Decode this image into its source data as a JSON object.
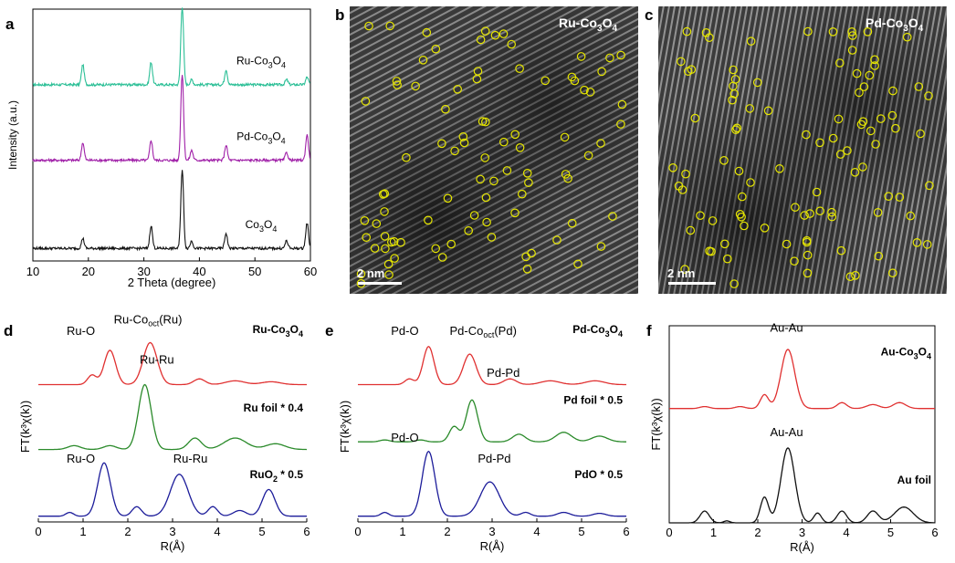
{
  "panels": {
    "a": "a",
    "b": "b",
    "c": "c",
    "d": "d",
    "e": "e",
    "f": "f"
  },
  "tem": {
    "b": {
      "label": "Ru-Co",
      "sub": "3",
      "after": "O",
      "sub2": "4",
      "scale": "2 nm"
    },
    "c": {
      "label": "Pd-Co",
      "sub": "3",
      "after": "O",
      "sub2": "4",
      "scale": "2 nm"
    }
  },
  "colors": {
    "teal": "#2bbf96",
    "purple": "#a020a8",
    "black": "#111111",
    "red": "#e03030",
    "green": "#2a8a2a",
    "blue": "#1c1c9a",
    "yellow": "#e6e600"
  },
  "chart_data": [
    {
      "id": "a",
      "type": "line",
      "title": "",
      "xlabel": "2 Theta (degree)",
      "ylabel": "Intensity (a.u.)",
      "xlim": [
        10,
        60
      ],
      "xticks": [
        "10",
        "20",
        "30",
        "40",
        "50",
        "60"
      ],
      "peaks": [
        19.0,
        31.3,
        36.9,
        38.6,
        44.8,
        55.7,
        59.4
      ],
      "series": [
        {
          "name": "Ru-Co3O4",
          "label": "Ru-Co",
          "sub": "3",
          "after": "O",
          "sub2": "4",
          "color": "#2bbf96",
          "offset": 0.7,
          "heights": [
            0.08,
            0.09,
            0.31,
            0.02,
            0.06,
            0.02,
            0.03
          ]
        },
        {
          "name": "Pd-Co3O4",
          "label": "Pd-Co",
          "sub": "3",
          "after": "O",
          "sub2": "4",
          "color": "#a020a8",
          "offset": 0.4,
          "heights": [
            0.07,
            0.08,
            0.34,
            0.04,
            0.06,
            0.03,
            0.1
          ]
        },
        {
          "name": "Co3O4",
          "label": "Co",
          "sub": "3",
          "after": "O",
          "sub2": "4",
          "color": "#111111",
          "offset": 0.05,
          "heights": [
            0.04,
            0.09,
            0.31,
            0.03,
            0.06,
            0.03,
            0.1
          ]
        }
      ]
    },
    {
      "id": "d",
      "type": "line",
      "xlabel": "R(Å)",
      "ylabel": "FT(k³χ(k))",
      "xlim": [
        0,
        6
      ],
      "xticks": [
        "0",
        "1",
        "2",
        "3",
        "4",
        "5",
        "6"
      ],
      "series": [
        {
          "name": "Ru-Co3O4",
          "bold": "Ru-Co",
          "boldsub": "3",
          "boldafter": "O",
          "boldsub2": "4",
          "color": "#e03030",
          "offset": 0.72,
          "peaks": [
            [
              1.2,
              0.05,
              0.14
            ],
            [
              1.6,
              0.18,
              0.18
            ],
            [
              2.5,
              0.22,
              0.22
            ],
            [
              3.6,
              0.03,
              0.18
            ],
            [
              4.4,
              0.02,
              0.3
            ],
            [
              5.2,
              0.015,
              0.3
            ]
          ],
          "ann": [
            {
              "t": "Ru-O",
              "x": 0.95,
              "y": 0.98
            },
            {
              "t": "Ru-Co",
              "sub": "oct",
              "after": "(Ru)",
              "x": 2.45,
              "y": 1.04
            }
          ]
        },
        {
          "name": "Ru foil * 0.4",
          "bold": "Ru foil * 0.4",
          "color": "#2a8a2a",
          "offset": 0.38,
          "peaks": [
            [
              0.8,
              0.02,
              0.2
            ],
            [
              1.6,
              0.02,
              0.2
            ],
            [
              2.38,
              0.34,
              0.2
            ],
            [
              3.5,
              0.06,
              0.2
            ],
            [
              4.4,
              0.06,
              0.35
            ],
            [
              5.3,
              0.03,
              0.3
            ]
          ],
          "ann": [
            {
              "t": "Ru-Ru",
              "x": 2.65,
              "y": 0.83
            }
          ]
        },
        {
          "name": "RuO2 * 0.5",
          "bold": "RuO",
          "boldsub": "2",
          "boldafter": " * 0.5",
          "color": "#1c1c9a",
          "offset": 0.03,
          "peaks": [
            [
              0.7,
              0.02,
              0.12
            ],
            [
              1.47,
              0.28,
              0.2
            ],
            [
              2.2,
              0.05,
              0.15
            ],
            [
              3.15,
              0.22,
              0.28
            ],
            [
              3.9,
              0.05,
              0.15
            ],
            [
              4.5,
              0.03,
              0.2
            ],
            [
              5.15,
              0.14,
              0.2
            ]
          ],
          "ann": [
            {
              "t": "Ru-O",
              "x": 0.95,
              "y": 0.31
            },
            {
              "t": "Ru-Ru",
              "x": 3.4,
              "y": 0.31
            }
          ]
        }
      ]
    },
    {
      "id": "e",
      "type": "line",
      "xlabel": "R(Å)",
      "ylabel": "FT(k³χ(k))",
      "xlim": [
        0,
        6
      ],
      "xticks": [
        "0",
        "1",
        "2",
        "3",
        "4",
        "5",
        "6"
      ],
      "series": [
        {
          "name": "Pd-Co3O4",
          "bold": "Pd-Co",
          "boldsub": "3",
          "boldafter": "O",
          "boldsub2": "4",
          "color": "#e03030",
          "offset": 0.72,
          "peaks": [
            [
              1.15,
              0.03,
              0.14
            ],
            [
              1.58,
              0.2,
              0.17
            ],
            [
              2.5,
              0.16,
              0.2
            ],
            [
              3.4,
              0.03,
              0.2
            ],
            [
              4.3,
              0.02,
              0.3
            ],
            [
              5.3,
              0.02,
              0.3
            ]
          ],
          "ann": [
            {
              "t": "Pd-O",
              "x": 1.05,
              "y": 0.98
            },
            {
              "t": "Pd-Co",
              "sub": "oct",
              "after": "(Pd)",
              "x": 2.8,
              "y": 0.98
            }
          ]
        },
        {
          "name": "Pd foil * 0.5",
          "bold": "Pd foil * 0.5",
          "color": "#2a8a2a",
          "offset": 0.42,
          "peaks": [
            [
              0.6,
              0.01,
              0.15
            ],
            [
              1.4,
              0.01,
              0.15
            ],
            [
              2.15,
              0.08,
              0.15
            ],
            [
              2.55,
              0.22,
              0.18
            ],
            [
              3.6,
              0.04,
              0.2
            ],
            [
              4.6,
              0.05,
              0.25
            ],
            [
              5.4,
              0.03,
              0.25
            ]
          ],
          "ann": [
            {
              "t": "Pd-Pd",
              "x": 3.25,
              "y": 0.76
            }
          ]
        },
        {
          "name": "PdO * 0.5",
          "bold": "PdO * 0.5",
          "color": "#1c1c9a",
          "offset": 0.03,
          "peaks": [
            [
              0.6,
              0.02,
              0.12
            ],
            [
              1.58,
              0.34,
              0.2
            ],
            [
              2.95,
              0.18,
              0.3
            ],
            [
              3.75,
              0.02,
              0.15
            ],
            [
              4.6,
              0.02,
              0.2
            ],
            [
              5.4,
              0.015,
              0.2
            ]
          ],
          "ann": [
            {
              "t": "Pd-O",
              "x": 1.05,
              "y": 0.42
            },
            {
              "t": "Pd-Pd",
              "x": 3.05,
              "y": 0.31
            }
          ]
        }
      ]
    },
    {
      "id": "f",
      "type": "line",
      "xlabel": "R(Å)",
      "ylabel": "FT(k³χ(k))",
      "xlim": [
        0,
        6
      ],
      "xticks": [
        "0",
        "1",
        "2",
        "3",
        "4",
        "5",
        "6"
      ],
      "framed": true,
      "series": [
        {
          "name": "Au-Co3O4",
          "bold": "Au-Co",
          "boldsub": "3",
          "boldafter": "O",
          "boldsub2": "4",
          "color": "#e03030",
          "offset": 0.58,
          "peaks": [
            [
              0.8,
              0.01,
              0.15
            ],
            [
              1.6,
              0.01,
              0.15
            ],
            [
              2.15,
              0.07,
              0.13
            ],
            [
              2.68,
              0.3,
              0.22
            ],
            [
              3.9,
              0.03,
              0.15
            ],
            [
              4.6,
              0.02,
              0.2
            ],
            [
              5.2,
              0.03,
              0.2
            ]
          ],
          "ann": [
            {
              "t": "Au-Au",
              "x": 2.65,
              "y": 0.97
            }
          ]
        },
        {
          "name": "Au foil",
          "bold": "Au foil",
          "color": "#111111",
          "offset": 0.0,
          "peaks": [
            [
              0.8,
              0.06,
              0.15
            ],
            [
              1.3,
              0.01,
              0.1
            ],
            [
              2.15,
              0.13,
              0.13
            ],
            [
              2.68,
              0.38,
              0.22
            ],
            [
              3.35,
              0.05,
              0.12
            ],
            [
              3.9,
              0.06,
              0.15
            ],
            [
              4.6,
              0.06,
              0.18
            ],
            [
              5.3,
              0.08,
              0.3
            ]
          ],
          "ann": [
            {
              "t": "Au-Au",
              "x": 2.65,
              "y": 0.44
            }
          ]
        }
      ]
    }
  ]
}
